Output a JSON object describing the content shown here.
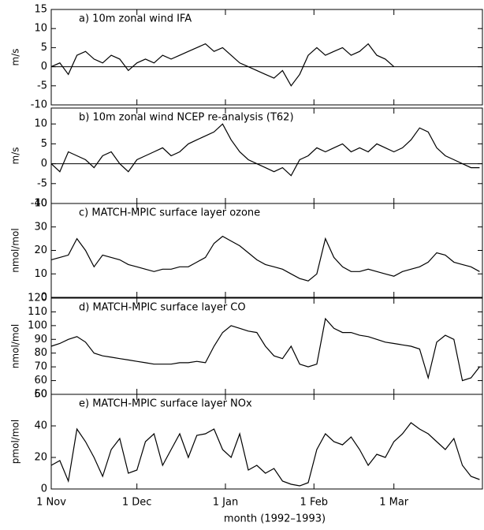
{
  "chart_data": [
    {
      "type": "line",
      "title": "a) 10m zonal wind IFA",
      "ylabel": "m/s",
      "color": "#000000",
      "ylim": [
        -10,
        15
      ],
      "yticks": [
        -10,
        -5,
        0,
        5,
        10,
        15
      ],
      "hline": 0,
      "xlim": [
        0,
        151
      ],
      "x": [
        0,
        3,
        6,
        9,
        12,
        15,
        18,
        21,
        24,
        27,
        30,
        33,
        36,
        39,
        42,
        45,
        48,
        51,
        54,
        57,
        60,
        63,
        66,
        69,
        72,
        75,
        78,
        81,
        84,
        87,
        90,
        93,
        96,
        99,
        102,
        105,
        108,
        111,
        114,
        117,
        120
      ],
      "values": [
        0,
        1,
        -2,
        3,
        4,
        2,
        1,
        3,
        2,
        -1,
        1,
        2,
        1,
        3,
        2,
        3,
        4,
        5,
        6,
        4,
        5,
        3,
        1,
        0,
        -1,
        -2,
        -3,
        -1,
        -5,
        -2,
        3,
        5,
        3,
        4,
        5,
        3,
        4,
        6,
        3,
        2,
        0
      ]
    },
    {
      "type": "line",
      "title": "b) 10m zonal wind NCEP re-analysis (T62)",
      "ylabel": "m/s",
      "color": "#000000",
      "ylim": [
        -10,
        14
      ],
      "yticks": [
        -10,
        -5,
        0,
        5,
        10
      ],
      "hline": 0,
      "xlim": [
        0,
        151
      ],
      "x": [
        0,
        3,
        6,
        9,
        12,
        15,
        18,
        21,
        24,
        27,
        30,
        33,
        36,
        39,
        42,
        45,
        48,
        51,
        54,
        57,
        60,
        63,
        66,
        69,
        72,
        75,
        78,
        81,
        84,
        87,
        90,
        93,
        96,
        99,
        102,
        105,
        108,
        111,
        114,
        117,
        120,
        123,
        126,
        129,
        132,
        135,
        138,
        141,
        144,
        147,
        150
      ],
      "values": [
        0,
        -2,
        3,
        2,
        1,
        -1,
        2,
        3,
        0,
        -2,
        1,
        2,
        3,
        4,
        2,
        3,
        5,
        6,
        7,
        8,
        10,
        6,
        3,
        1,
        0,
        -1,
        -2,
        -1,
        -3,
        1,
        2,
        4,
        3,
        4,
        5,
        3,
        4,
        3,
        5,
        4,
        3,
        4,
        6,
        9,
        8,
        4,
        2,
        1,
        0,
        -1,
        -1
      ]
    },
    {
      "type": "line",
      "title": "c) MATCH-MPIC surface layer ozone",
      "ylabel": "nmol/mol",
      "color": "#000000",
      "ylim": [
        0,
        40
      ],
      "yticks": [
        0,
        10,
        20,
        30,
        40
      ],
      "xlim": [
        0,
        151
      ],
      "x": [
        0,
        3,
        6,
        9,
        12,
        15,
        18,
        21,
        24,
        27,
        30,
        33,
        36,
        39,
        42,
        45,
        48,
        51,
        54,
        57,
        60,
        63,
        66,
        69,
        72,
        75,
        78,
        81,
        84,
        87,
        90,
        93,
        96,
        99,
        102,
        105,
        108,
        111,
        114,
        117,
        120,
        123,
        126,
        129,
        132,
        135,
        138,
        141,
        144,
        147,
        150
      ],
      "values": [
        16,
        17,
        18,
        25,
        20,
        13,
        18,
        17,
        16,
        14,
        13,
        12,
        11,
        12,
        12,
        13,
        13,
        15,
        17,
        23,
        26,
        24,
        22,
        19,
        16,
        14,
        13,
        12,
        10,
        8,
        7,
        10,
        25,
        17,
        13,
        11,
        11,
        12,
        11,
        10,
        9,
        11,
        12,
        13,
        15,
        19,
        18,
        15,
        14,
        13,
        11
      ]
    },
    {
      "type": "line",
      "title": "d) MATCH-MPIC surface layer CO",
      "ylabel": "nmol/mol",
      "color": "#000000",
      "ylim": [
        50,
        120
      ],
      "yticks": [
        50,
        60,
        70,
        80,
        90,
        100,
        110,
        120
      ],
      "xlim": [
        0,
        151
      ],
      "x": [
        0,
        3,
        6,
        9,
        12,
        15,
        18,
        21,
        24,
        27,
        30,
        33,
        36,
        39,
        42,
        45,
        48,
        51,
        54,
        57,
        60,
        63,
        66,
        69,
        72,
        75,
        78,
        81,
        84,
        87,
        90,
        93,
        96,
        99,
        102,
        105,
        108,
        111,
        114,
        117,
        120,
        123,
        126,
        129,
        132,
        135,
        138,
        141,
        144,
        147,
        150
      ],
      "values": [
        85,
        87,
        90,
        92,
        88,
        80,
        78,
        77,
        76,
        75,
        74,
        73,
        72,
        72,
        72,
        73,
        73,
        74,
        73,
        85,
        95,
        100,
        98,
        96,
        95,
        85,
        78,
        76,
        85,
        72,
        70,
        72,
        105,
        98,
        95,
        95,
        93,
        92,
        90,
        88,
        87,
        86,
        85,
        83,
        62,
        88,
        93,
        90,
        60,
        62,
        70
      ]
    },
    {
      "type": "line",
      "title": "e) MATCH-MPIC surface layer NOx",
      "ylabel": "pmol/mol",
      "xlabel": "month (1992–1993)",
      "color": "#000000",
      "ylim": [
        0,
        60
      ],
      "yticks": [
        0,
        20,
        40,
        60
      ],
      "xlim": [
        0,
        151
      ],
      "xticks": [
        {
          "value": 0,
          "label": "1 Nov"
        },
        {
          "value": 30,
          "label": "1 Dec"
        },
        {
          "value": 61,
          "label": "1 Jan"
        },
        {
          "value": 92,
          "label": "1 Feb"
        },
        {
          "value": 120,
          "label": "1 Mar"
        }
      ],
      "x": [
        0,
        3,
        6,
        9,
        12,
        15,
        18,
        21,
        24,
        27,
        30,
        33,
        36,
        39,
        42,
        45,
        48,
        51,
        54,
        57,
        60,
        63,
        66,
        69,
        72,
        75,
        78,
        81,
        84,
        87,
        90,
        93,
        96,
        99,
        102,
        105,
        108,
        111,
        114,
        117,
        120,
        123,
        126,
        129,
        132,
        135,
        138,
        141,
        144,
        147,
        150
      ],
      "values": [
        15,
        18,
        5,
        38,
        30,
        20,
        8,
        25,
        32,
        10,
        12,
        30,
        35,
        15,
        25,
        35,
        20,
        34,
        35,
        38,
        25,
        20,
        35,
        12,
        15,
        10,
        13,
        5,
        3,
        2,
        4,
        25,
        35,
        30,
        28,
        33,
        25,
        15,
        22,
        20,
        30,
        35,
        42,
        38,
        35,
        30,
        25,
        32,
        15,
        8,
        6
      ]
    }
  ]
}
